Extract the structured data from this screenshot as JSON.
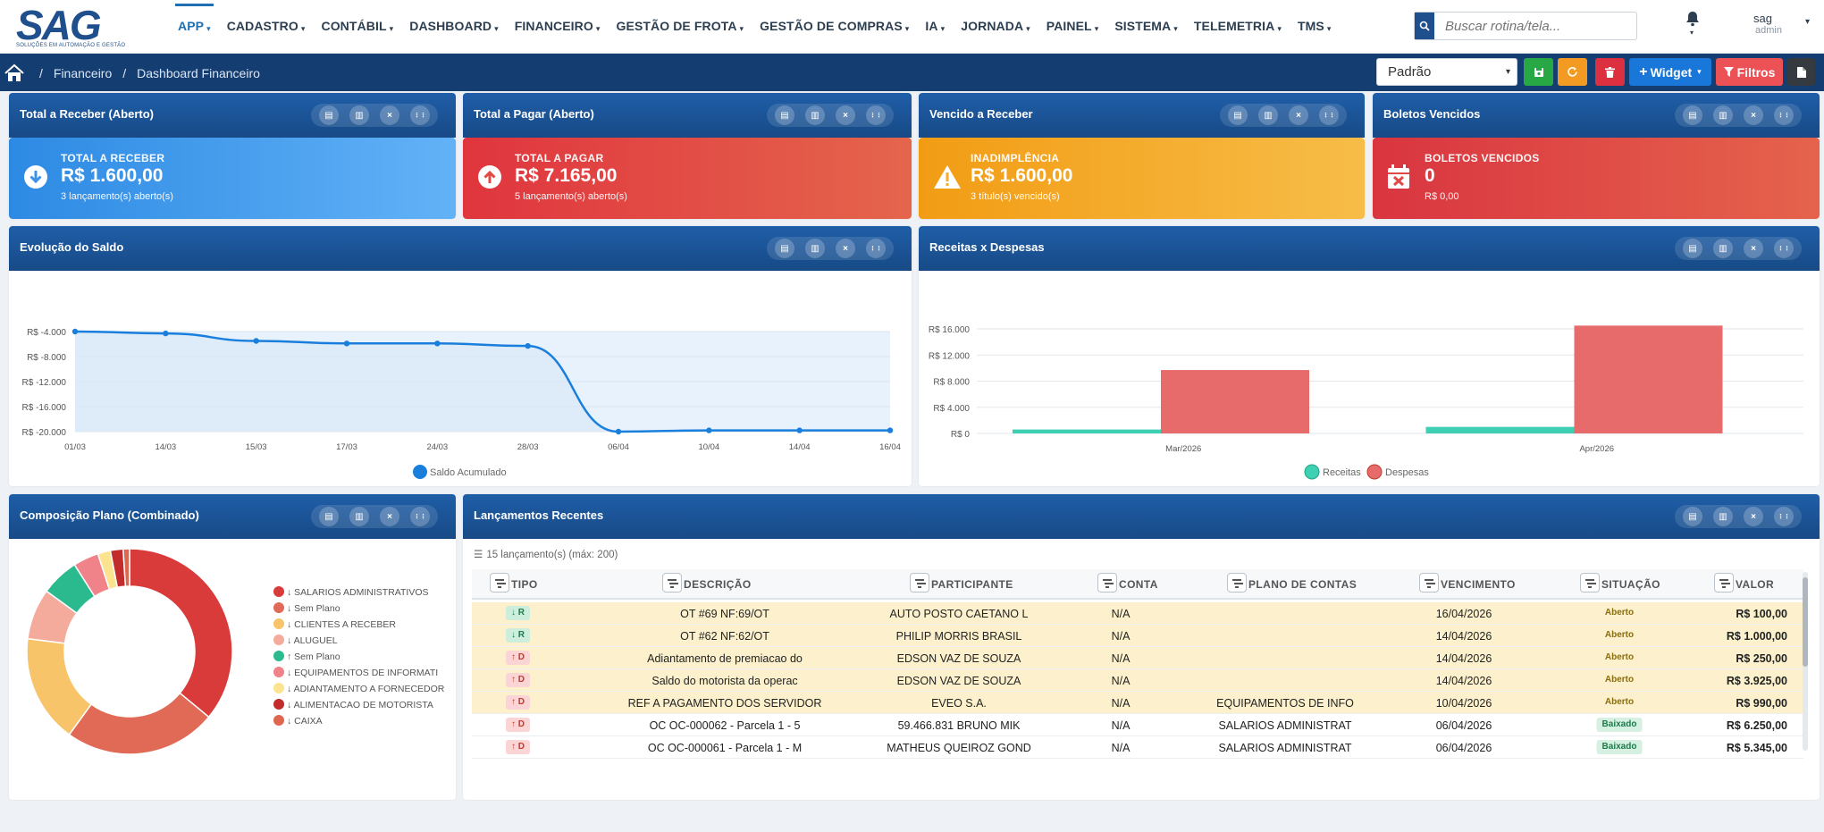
{
  "logo": {
    "brand": "SAG",
    "tagline": "SOLUÇÕES EM AUTOMAÇÃO E GESTÃO"
  },
  "menu": [
    "APP",
    "CADASTRO",
    "CONTÁBIL",
    "DASHBOARD",
    "FINANCEIRO",
    "GESTÃO DE FROTA",
    "GESTÃO DE COMPRAS",
    "IA",
    "JORNADA",
    "PAINEL",
    "SISTEMA",
    "TELEMETRIA",
    "TMS"
  ],
  "search": {
    "placeholder": "Buscar rotina/tela..."
  },
  "user": {
    "name": "sag",
    "role": "admin"
  },
  "breadcrumb": [
    "Financeiro",
    "Dashboard Financeiro"
  ],
  "toolbar": {
    "layout_value": "Padrão",
    "widget_label": "Widget",
    "filter_label": "Filtros"
  },
  "widgets": {
    "w1": {
      "title": "Total a Receber (Aberto)",
      "label": "TOTAL A RECEBER",
      "value": "R$ 1.600,00",
      "sub": "3 lançamento(s) aberto(s)"
    },
    "w2": {
      "title": "Total a Pagar (Aberto)",
      "label": "TOTAL A PAGAR",
      "value": "R$ 7.165,00",
      "sub": "5 lançamento(s) aberto(s)"
    },
    "w3": {
      "title": "Vencido a Receber",
      "label": "INADIMPLÊNCIA",
      "value": "R$ 1.600,00",
      "sub": "3 título(s) vencido(s)"
    },
    "w4": {
      "title": "Boletos Vencidos",
      "label": "BOLETOS VENCIDOS",
      "value": "0",
      "sub": "R$ 0,00"
    },
    "saldo": {
      "title": "Evolução do Saldo"
    },
    "receitas": {
      "title": "Receitas x Despesas"
    },
    "plano": {
      "title": "Composição Plano (Combinado)"
    },
    "lanc": {
      "title": "Lançamentos Recentes",
      "count": "15 lançamento(s) (máx: 200)"
    }
  },
  "colors": {
    "blue": "#3a93e6",
    "red": "#e4503f",
    "orange": "#f3a826",
    "darkred": "#e0463c",
    "receitas": "#3fcfb2",
    "despesas": "#e86b6b"
  },
  "chart_data": [
    {
      "type": "line",
      "x": [
        "01/03",
        "14/03",
        "15/03",
        "17/03",
        "24/03",
        "28/03",
        "06/04",
        "10/04",
        "14/04",
        "16/04"
      ],
      "series": [
        {
          "name": "Saldo Acumulado",
          "values": [
            -4000,
            -4300,
            -5500,
            -5900,
            -5900,
            -6300,
            -20000,
            -19800,
            -19800,
            -19800
          ]
        }
      ],
      "yticks": [
        "R$ -4.000",
        "R$ -8.000",
        "R$ -12.000",
        "R$ -16.000",
        "R$ -20.000"
      ],
      "ylim": [
        -20000,
        -4000
      ],
      "legend": "bottom"
    },
    {
      "type": "bar",
      "categories": [
        "Mar/2026",
        "Apr/2026"
      ],
      "series": [
        {
          "name": "Receitas",
          "values": [
            600,
            1000
          ]
        },
        {
          "name": "Despesas",
          "values": [
            9700,
            16500
          ]
        }
      ],
      "yticks": [
        "R$ 16.000",
        "R$ 12.000",
        "R$ 8.000",
        "R$ 4.000",
        "R$ 0"
      ],
      "ylim": [
        0,
        16000
      ],
      "legend": "bottom"
    },
    {
      "type": "pie",
      "series": [
        {
          "name": "↓ SALARIOS ADMINISTRATIVOS",
          "value": 36,
          "color": "#d93a3a"
        },
        {
          "name": "↓ Sem Plano",
          "value": 24,
          "color": "#e06a55"
        },
        {
          "name": "↓ CLIENTES A RECEBER",
          "value": 17,
          "color": "#f7c46a"
        },
        {
          "name": "↓ ALUGUEL",
          "value": 8,
          "color": "#f4ab9c"
        },
        {
          "name": "↑ Sem Plano",
          "value": 6,
          "color": "#2bb98e"
        },
        {
          "name": "↓ EQUIPAMENTOS DE INFORMATI",
          "value": 4,
          "color": "#f0838a"
        },
        {
          "name": "↓ ADIANTAMENTO A FORNECEDOR",
          "value": 2,
          "color": "#fbe38f"
        },
        {
          "name": "↓ ALIMENTACAO DE MOTORISTA",
          "value": 2,
          "color": "#c22c2c"
        },
        {
          "name": "↓ CAIXA",
          "value": 1,
          "color": "#e0674f"
        }
      ],
      "legend": "right"
    }
  ],
  "table": {
    "headers": [
      "TIPO",
      "DESCRIÇÃO",
      "PARTICIPANTE",
      "CONTA",
      "PLANO DE CONTAS",
      "VENCIMENTO",
      "SITUAÇÃO",
      "VALOR"
    ],
    "rows": [
      {
        "tipo": "↓ R",
        "descricao": "OT #69 NF:69/OT",
        "participante": "AUTO POSTO CAETANO L",
        "conta": "N/A",
        "plano": "",
        "venc": "16/04/2026",
        "situacao": "Aberto",
        "valor": "R$ 100,00"
      },
      {
        "tipo": "↓ R",
        "descricao": "OT #62 NF:62/OT",
        "participante": "PHILIP MORRIS BRASIL",
        "conta": "N/A",
        "plano": "",
        "venc": "14/04/2026",
        "situacao": "Aberto",
        "valor": "R$ 1.000,00"
      },
      {
        "tipo": "↑ D",
        "descricao": "Adiantamento de premiacao do",
        "participante": "EDSON VAZ DE SOUZA",
        "conta": "N/A",
        "plano": "",
        "venc": "14/04/2026",
        "situacao": "Aberto",
        "valor": "R$ 250,00"
      },
      {
        "tipo": "↑ D",
        "descricao": "Saldo do motorista da operac",
        "participante": "EDSON VAZ DE SOUZA",
        "conta": "N/A",
        "plano": "",
        "venc": "14/04/2026",
        "situacao": "Aberto",
        "valor": "R$ 3.925,00"
      },
      {
        "tipo": "↑ D",
        "descricao": "REF A PAGAMENTO DOS SERVIDOR",
        "participante": "EVEO S.A.",
        "conta": "N/A",
        "plano": "EQUIPAMENTOS DE INFO",
        "venc": "10/04/2026",
        "situacao": "Aberto",
        "valor": "R$ 990,00"
      },
      {
        "tipo": "↑ D",
        "descricao": "OC OC-000062 - Parcela 1 - 5",
        "participante": "59.466.831 BRUNO MIK",
        "conta": "N/A",
        "plano": "SALARIOS ADMINISTRAT",
        "venc": "06/04/2026",
        "situacao": "Baixado",
        "valor": "R$ 6.250,00"
      },
      {
        "tipo": "↑ D",
        "descricao": "OC OC-000061 - Parcela 1 - M",
        "participante": "MATHEUS QUEIROZ GOND",
        "conta": "N/A",
        "plano": "SALARIOS ADMINISTRAT",
        "venc": "06/04/2026",
        "situacao": "Baixado",
        "valor": "R$ 5.345,00"
      }
    ]
  }
}
